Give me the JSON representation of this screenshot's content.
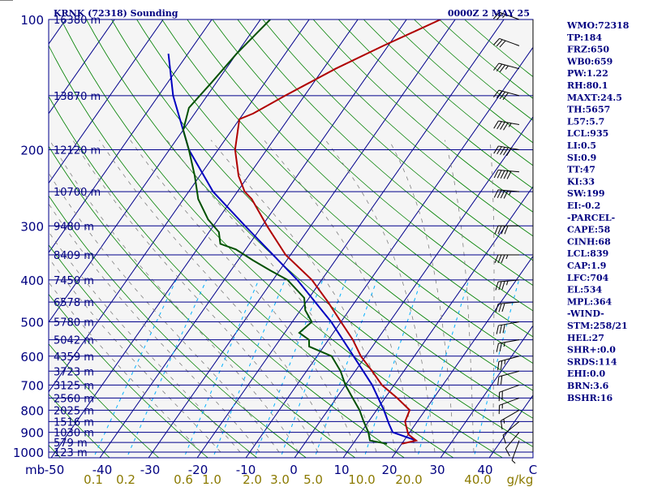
{
  "header": {
    "station": "KRNK (72318) Sounding",
    "time": "0000Z  2 MAY 25"
  },
  "colors": {
    "plot_bg": "#f5f5f5",
    "isobar": "#00008b",
    "isotherm": "#00008b",
    "dry_adiabat": "#008000",
    "moist_adiabat": "#808080",
    "mixing_ratio": "#00b0ff",
    "temperature": "#b00000",
    "dewpoint": "#005000",
    "parcel": "#0000c0",
    "text": "#000080",
    "mixing_label": "#8b7a00"
  },
  "chart_data": {
    "type": "skew-t",
    "pressure_labels": [
      "100",
      "200",
      "300",
      "400",
      "500",
      "600",
      "700",
      "800",
      "900",
      "1000"
    ],
    "pressure_unit": "mb",
    "temperature_labels": [
      "-50",
      "-40",
      "-30",
      "-20",
      "-10",
      "0",
      "10",
      "20",
      "30",
      "40",
      "C"
    ],
    "mixing_ratio_labels": [
      "0.1",
      "0.2",
      "0.6",
      "1.0",
      "2.0",
      "3.0",
      "5.0",
      "10.0",
      "20.0",
      "40.0",
      "g/kg"
    ],
    "height_levels": [
      {
        "p": 100,
        "label": "16380 m"
      },
      {
        "p": 150,
        "label": "13870 m"
      },
      {
        "p": 200,
        "label": "12120 m"
      },
      {
        "p": 250,
        "label": "10700 m"
      },
      {
        "p": 300,
        "label": "9480 m"
      },
      {
        "p": 350,
        "label": "8409 m"
      },
      {
        "p": 400,
        "label": "7450 m"
      },
      {
        "p": 450,
        "label": "6578 m"
      },
      {
        "p": 500,
        "label": "5780 m"
      },
      {
        "p": 550,
        "label": "5042 m"
      },
      {
        "p": 600,
        "label": "4359 m"
      },
      {
        "p": 650,
        "label": "3723 m"
      },
      {
        "p": 700,
        "label": "3125 m"
      },
      {
        "p": 750,
        "label": "2560 m"
      },
      {
        "p": 800,
        "label": "2025 m"
      },
      {
        "p": 850,
        "label": "1516 m"
      },
      {
        "p": 900,
        "label": "1030 m"
      },
      {
        "p": 950,
        "label": "579 m"
      },
      {
        "p": 1000,
        "label": "123 m"
      }
    ],
    "temperature_profile": [
      {
        "p": 957,
        "t": 20.0
      },
      {
        "p": 940,
        "t": 22.5
      },
      {
        "p": 910,
        "t": 20.0
      },
      {
        "p": 850,
        "t": 17.5
      },
      {
        "p": 800,
        "t": 16.8
      },
      {
        "p": 750,
        "t": 12.5
      },
      {
        "p": 700,
        "t": 7.5
      },
      {
        "p": 650,
        "t": 3.5
      },
      {
        "p": 600,
        "t": -1.0
      },
      {
        "p": 550,
        "t": -5.0
      },
      {
        "p": 500,
        "t": -10.0
      },
      {
        "p": 450,
        "t": -15.5
      },
      {
        "p": 400,
        "t": -22.0
      },
      {
        "p": 350,
        "t": -31.0
      },
      {
        "p": 300,
        "t": -39.0
      },
      {
        "p": 260,
        "t": -46.0
      },
      {
        "p": 250,
        "t": -48.5
      },
      {
        "p": 230,
        "t": -52.0
      },
      {
        "p": 200,
        "t": -56.5
      },
      {
        "p": 170,
        "t": -60.0
      },
      {
        "p": 165,
        "t": -58.0
      },
      {
        "p": 150,
        "t": -54.0
      },
      {
        "p": 130,
        "t": -47.5
      },
      {
        "p": 115,
        "t": -41.0
      },
      {
        "p": 100,
        "t": -33.0
      }
    ],
    "dewpoint_profile": [
      {
        "p": 957,
        "t": 17.0
      },
      {
        "p": 940,
        "t": 13.0
      },
      {
        "p": 900,
        "t": 11.5
      },
      {
        "p": 850,
        "t": 9.0
      },
      {
        "p": 800,
        "t": 6.5
      },
      {
        "p": 760,
        "t": 4.0
      },
      {
        "p": 700,
        "t": 0.0
      },
      {
        "p": 650,
        "t": -3.0
      },
      {
        "p": 600,
        "t": -7.0
      },
      {
        "p": 570,
        "t": -13.0
      },
      {
        "p": 550,
        "t": -14.0
      },
      {
        "p": 530,
        "t": -17.0
      },
      {
        "p": 500,
        "t": -16.0
      },
      {
        "p": 470,
        "t": -19.0
      },
      {
        "p": 440,
        "t": -21.0
      },
      {
        "p": 400,
        "t": -27.0
      },
      {
        "p": 380,
        "t": -32.0
      },
      {
        "p": 360,
        "t": -37.0
      },
      {
        "p": 340,
        "t": -42.0
      },
      {
        "p": 330,
        "t": -46.0
      },
      {
        "p": 310,
        "t": -48.0
      },
      {
        "p": 290,
        "t": -52.0
      },
      {
        "p": 260,
        "t": -57.0
      },
      {
        "p": 230,
        "t": -61.0
      },
      {
        "p": 200,
        "t": -66.0
      },
      {
        "p": 180,
        "t": -70.0
      },
      {
        "p": 160,
        "t": -72.0
      },
      {
        "p": 140,
        "t": -71.0
      },
      {
        "p": 120,
        "t": -70.0
      },
      {
        "p": 100,
        "t": -68.0
      }
    ],
    "parcel_profile": [
      {
        "p": 940,
        "t": 22.5
      },
      {
        "p": 900,
        "t": 16.5
      },
      {
        "p": 860,
        "t": 14.5
      },
      {
        "p": 800,
        "t": 11.5
      },
      {
        "p": 700,
        "t": 5.5
      },
      {
        "p": 600,
        "t": -2.5
      },
      {
        "p": 500,
        "t": -12.0
      },
      {
        "p": 400,
        "t": -25.0
      },
      {
        "p": 300,
        "t": -43.5
      },
      {
        "p": 250,
        "t": -55.0
      },
      {
        "p": 200,
        "t": -66.0
      },
      {
        "p": 150,
        "t": -77.0
      },
      {
        "p": 120,
        "t": -84.0
      }
    ],
    "winds": [
      {
        "p": 100,
        "dir": 290,
        "kt": 25
      },
      {
        "p": 115,
        "dir": 290,
        "kt": 30
      },
      {
        "p": 130,
        "dir": 285,
        "kt": 35
      },
      {
        "p": 150,
        "dir": 285,
        "kt": 40
      },
      {
        "p": 175,
        "dir": 280,
        "kt": 45
      },
      {
        "p": 200,
        "dir": 280,
        "kt": 50
      },
      {
        "p": 225,
        "dir": 275,
        "kt": 50
      },
      {
        "p": 250,
        "dir": 275,
        "kt": 45
      },
      {
        "p": 300,
        "dir": 270,
        "kt": 40
      },
      {
        "p": 350,
        "dir": 270,
        "kt": 35
      },
      {
        "p": 400,
        "dir": 265,
        "kt": 35
      },
      {
        "p": 450,
        "dir": 265,
        "kt": 30
      },
      {
        "p": 500,
        "dir": 260,
        "kt": 30
      },
      {
        "p": 550,
        "dir": 260,
        "kt": 25
      },
      {
        "p": 600,
        "dir": 255,
        "kt": 25
      },
      {
        "p": 650,
        "dir": 255,
        "kt": 20
      },
      {
        "p": 700,
        "dir": 250,
        "kt": 20
      },
      {
        "p": 750,
        "dir": 250,
        "kt": 15
      },
      {
        "p": 800,
        "dir": 240,
        "kt": 15
      },
      {
        "p": 850,
        "dir": 230,
        "kt": 10
      },
      {
        "p": 900,
        "dir": 220,
        "kt": 10
      },
      {
        "p": 940,
        "dir": 200,
        "kt": 5
      }
    ]
  },
  "stats": [
    "WMO:72318",
    "TP:184",
    "FRZ:650",
    "WB0:659",
    "PW:1.22",
    "RH:80.1",
    "MAXT:24.5",
    "TH:5657",
    "L57:5.7",
    "LCL:935",
    "LI:0.5",
    "SI:0.9",
    "TT:47",
    "KI:33",
    "SW:199",
    "EI:-0.2",
    "-PARCEL-",
    "CAPE:58",
    "CINH:68",
    "LCL:839",
    "CAP:1.9",
    "LFC:704",
    "EL:534",
    "MPL:364",
    "-WIND-",
    "STM:258/21",
    "HEL:27",
    "SHR+:0.0",
    "SRDS:114",
    "EHI:0.0",
    "BRN:3.6",
    "BSHR:16"
  ]
}
